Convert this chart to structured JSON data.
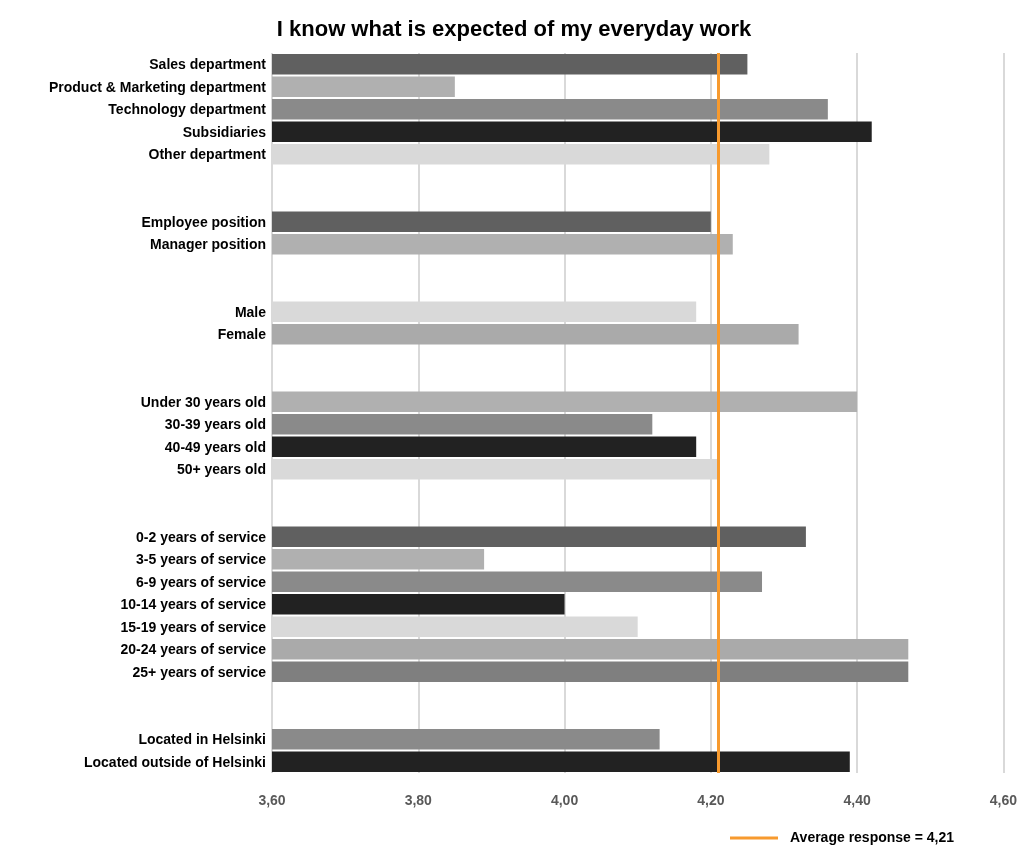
{
  "chart_data": {
    "type": "bar",
    "orientation": "horizontal",
    "title": "I know what is expected of my everyday work",
    "categories": [
      "Sales department",
      "Product & Marketing department",
      "Technology department",
      "Subsidiaries",
      "Other department",
      null,
      null,
      "Employee position",
      "Manager position",
      null,
      null,
      "Male",
      "Female",
      null,
      null,
      "Under 30 years old",
      "30-39 years old",
      "40-49 years old",
      "50+ years old",
      null,
      null,
      "0-2 years of service",
      "3-5 years of service",
      "6-9 years of service",
      "10-14 years of service",
      "15-19 years of service",
      "20-24 years of service",
      "25+ years of service",
      null,
      null,
      "Located in Helsinki",
      "Located outside of Helsinki"
    ],
    "values": [
      4.25,
      3.85,
      4.36,
      4.42,
      4.28,
      null,
      null,
      4.2,
      4.23,
      null,
      null,
      4.18,
      4.32,
      null,
      null,
      4.4,
      4.12,
      4.18,
      4.21,
      null,
      null,
      4.33,
      3.89,
      4.27,
      4.0,
      4.1,
      4.47,
      4.47,
      null,
      null,
      4.13,
      4.39
    ],
    "colors": [
      "#606060",
      "#b0b0b0",
      "#8a8a8a",
      "#222222",
      "#d9d9d9",
      "#ffffff",
      "#ffffff",
      "#606060",
      "#b0b0b0",
      "#ffffff",
      "#ffffff",
      "#d9d9d9",
      "#aaaaaa",
      "#ffffff",
      "#ffffff",
      "#b0b0b0",
      "#8a8a8a",
      "#222222",
      "#d9d9d9",
      "#ffffff",
      "#ffffff",
      "#606060",
      "#b0b0b0",
      "#8a8a8a",
      "#222222",
      "#d9d9d9",
      "#aaaaaa",
      "#7f7f7f",
      "#ffffff",
      "#ffffff",
      "#8a8a8a",
      "#222222"
    ],
    "xlim": [
      3.6,
      4.6
    ],
    "xticks": [
      {
        "value": 3.6,
        "label": "3,60"
      },
      {
        "value": 3.8,
        "label": "3,80"
      },
      {
        "value": 4.0,
        "label": "4,00"
      },
      {
        "value": 4.2,
        "label": "4,20"
      },
      {
        "value": 4.4,
        "label": "4,40"
      },
      {
        "value": 4.6,
        "label": "4,60"
      }
    ],
    "grid": "x",
    "ref_lines": [
      {
        "axis": "x",
        "value": 4.21,
        "label": "Average response = 4,21",
        "color": "#f79a2e",
        "line_style": "solid"
      }
    ]
  }
}
